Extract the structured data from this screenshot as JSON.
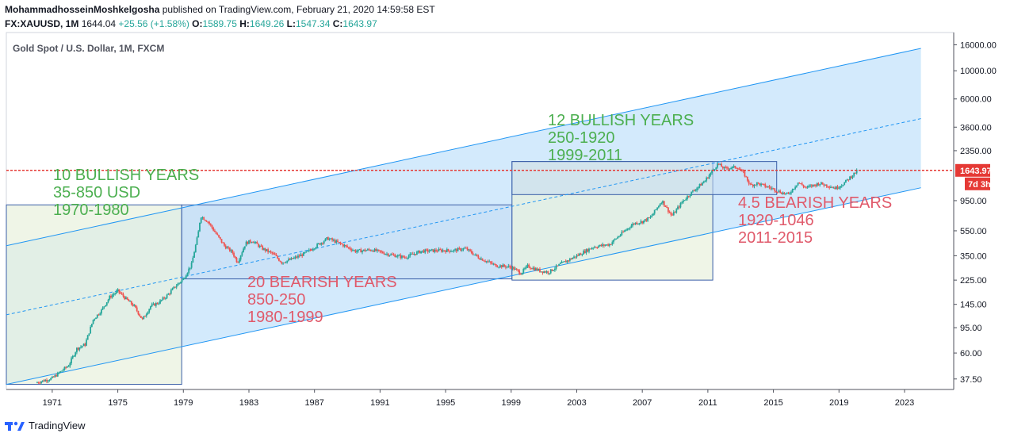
{
  "header": {
    "author": "MohammadhosseinMoshkelgosha",
    "published_text": "published on TradingView.com, February 21, 2020 14:59:58 EST",
    "symbol": "FX:XAUUSD, 1M",
    "last": "1644.04",
    "change": "+25.56 (+1.58%)",
    "o_label": "O:",
    "o_val": "1589.75",
    "h_label": "H:",
    "h_val": "1649.26",
    "l_label": "L:",
    "l_val": "1547.34",
    "c_label": "C:",
    "c_val": "1643.97"
  },
  "footer": {
    "brand": "TradingView"
  },
  "colors": {
    "channel_fill": "#bbdefb",
    "channel_line": "#2196f3",
    "box_green": "#e8f1dd",
    "box_blue_fill": "#c5dbf2",
    "box_line": "#3a5fa8",
    "up": "#26a69a",
    "down": "#ef5350",
    "price_line": "#e53935",
    "bull_text": "#4caf50",
    "bear_text": "#e05a6b"
  },
  "chart_data": {
    "type": "candlestick",
    "title": "Gold Spot / U.S. Dollar, 1M, FXCM",
    "y_scale": "log",
    "y_ticks": [
      16000,
      10000,
      6000,
      3600,
      2350,
      950,
      550,
      350,
      225,
      145,
      95,
      60,
      37.5
    ],
    "y_tick_labels": [
      "16000.00",
      "10000.00",
      "6000.00",
      "3600.00",
      "2350.00",
      "950.00",
      "550.00",
      "350.00",
      "225.00",
      "145.00",
      "95.00",
      "60.00",
      "37.50"
    ],
    "x_ticks": [
      "1971",
      "1975",
      "1979",
      "1983",
      "1987",
      "1991",
      "1995",
      "1999",
      "2003",
      "2007",
      "2011",
      "2015",
      "2019",
      "2023"
    ],
    "xlim": [
      1968.2,
      2026.0
    ],
    "ylim": [
      31,
      20000
    ],
    "current_price": "1643.97",
    "countdown": "7d 3h",
    "price_path": [
      [
        1970.0,
        35
      ],
      [
        1971.0,
        38
      ],
      [
        1972.0,
        48
      ],
      [
        1972.5,
        65
      ],
      [
        1973.0,
        70
      ],
      [
        1973.5,
        110
      ],
      [
        1974.0,
        130
      ],
      [
        1974.5,
        165
      ],
      [
        1975.0,
        185
      ],
      [
        1975.5,
        160
      ],
      [
        1976.0,
        140
      ],
      [
        1976.5,
        110
      ],
      [
        1977.0,
        140
      ],
      [
        1977.5,
        150
      ],
      [
        1978.0,
        170
      ],
      [
        1978.5,
        200
      ],
      [
        1979.0,
        230
      ],
      [
        1979.5,
        300
      ],
      [
        1979.9,
        520
      ],
      [
        1980.05,
        720
      ],
      [
        1980.5,
        650
      ],
      [
        1981.0,
        520
      ],
      [
        1981.5,
        420
      ],
      [
        1982.0,
        370
      ],
      [
        1982.3,
        310
      ],
      [
        1982.8,
        440
      ],
      [
        1983.2,
        460
      ],
      [
        1983.8,
        400
      ],
      [
        1984.5,
        360
      ],
      [
        1985.0,
        310
      ],
      [
        1985.5,
        325
      ],
      [
        1986.0,
        345
      ],
      [
        1986.5,
        370
      ],
      [
        1987.0,
        410
      ],
      [
        1987.8,
        480
      ],
      [
        1988.5,
        440
      ],
      [
        1989.5,
        380
      ],
      [
        1990.5,
        390
      ],
      [
        1991.5,
        360
      ],
      [
        1992.5,
        340
      ],
      [
        1993.5,
        380
      ],
      [
        1994.5,
        385
      ],
      [
        1995.5,
        385
      ],
      [
        1996.2,
        400
      ],
      [
        1997.0,
        340
      ],
      [
        1998.0,
        295
      ],
      [
        1999.0,
        285
      ],
      [
        1999.6,
        255
      ],
      [
        2000.0,
        290
      ],
      [
        2000.8,
        265
      ],
      [
        2001.3,
        260
      ],
      [
        2002.0,
        300
      ],
      [
        2003.0,
        350
      ],
      [
        2004.0,
        410
      ],
      [
        2005.0,
        430
      ],
      [
        2006.0,
        560
      ],
      [
        2006.5,
        630
      ],
      [
        2007.0,
        650
      ],
      [
        2007.5,
        700
      ],
      [
        2008.2,
        950
      ],
      [
        2008.8,
        720
      ],
      [
        2009.5,
        950
      ],
      [
        2010.0,
        1100
      ],
      [
        2010.8,
        1350
      ],
      [
        2011.6,
        1850
      ],
      [
        2012.0,
        1700
      ],
      [
        2012.8,
        1750
      ],
      [
        2013.2,
        1550
      ],
      [
        2013.6,
        1250
      ],
      [
        2014.0,
        1300
      ],
      [
        2014.8,
        1200
      ],
      [
        2015.5,
        1100
      ],
      [
        2015.9,
        1060
      ],
      [
        2016.5,
        1320
      ],
      [
        2017.0,
        1200
      ],
      [
        2017.8,
        1300
      ],
      [
        2018.5,
        1230
      ],
      [
        2018.8,
        1190
      ],
      [
        2019.3,
        1300
      ],
      [
        2019.8,
        1500
      ],
      [
        2020.15,
        1644
      ]
    ],
    "channel": {
      "upper": [
        [
          1968.2,
          420
        ],
        [
          2024.0,
          15000
        ]
      ],
      "lower": [
        [
          1968.2,
          34
        ],
        [
          2024.0,
          1200
        ]
      ],
      "mid": [
        [
          1968.2,
          120
        ],
        [
          2024.0,
          4200
        ]
      ]
    },
    "boxes": [
      {
        "x0": 1968.2,
        "x1": 1978.9,
        "y0": 34,
        "y1": 880,
        "style": "green"
      },
      {
        "x0": 1978.9,
        "x1": 1999.05,
        "y0": 230,
        "y1": 880,
        "style": "blue"
      },
      {
        "x0": 1999.05,
        "x1": 2011.3,
        "y0": 225,
        "y1": 1930,
        "style": "green"
      },
      {
        "x0": 1999.05,
        "x1": 2015.2,
        "y0": 1060,
        "y1": 1930,
        "style": "blue"
      }
    ],
    "annotations": [
      {
        "lines": [
          "10 BULLISH YEARS",
          "35-850 USD",
          "1970-1980"
        ],
        "style": "bull"
      },
      {
        "lines": [
          "20 BEARISH YEARS",
          "850-250",
          "1980-1999"
        ],
        "style": "bear"
      },
      {
        "lines": [
          "12 BULLISH YEARS",
          "250-1920",
          "1999-2011"
        ],
        "style": "bull"
      },
      {
        "lines": [
          "4.5 BEARISH YEARS",
          "1920-1046",
          "2011-2015"
        ],
        "style": "bear"
      }
    ]
  }
}
